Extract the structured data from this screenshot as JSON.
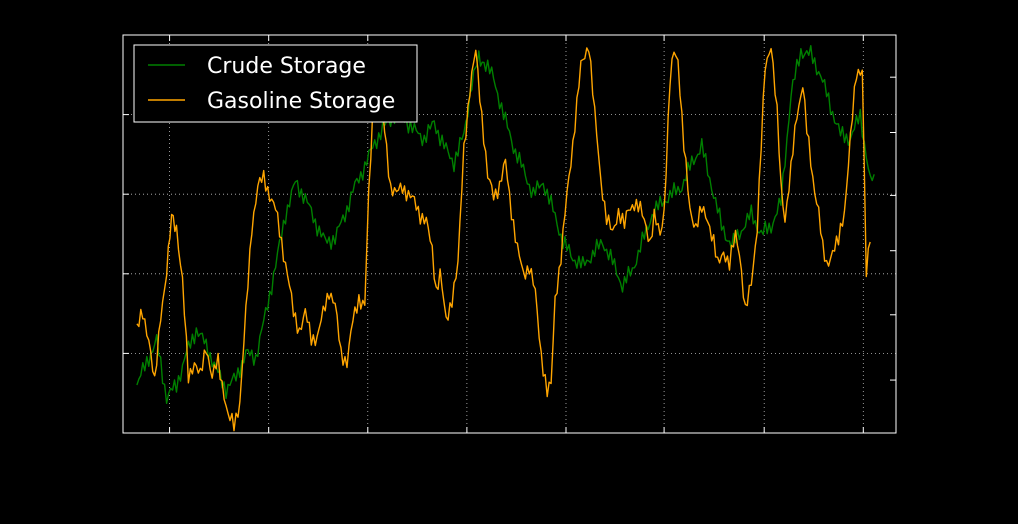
{
  "chart_data": {
    "type": "line",
    "grid": true,
    "legend_position": "top-left",
    "xlim": [
      0,
      780
    ],
    "ylim": [
      0,
      100
    ],
    "left_axis_ticks": [
      0,
      20,
      40,
      60,
      80,
      100
    ],
    "right_axis_ticks": [
      0,
      13.3,
      29.7,
      45.8,
      59.7,
      75.5,
      89.4
    ],
    "x_ticks": [
      47,
      147,
      247,
      347,
      447,
      546,
      647,
      747
    ],
    "series": [
      {
        "name": "Crude Storage",
        "color": "#008000",
        "points": [
          [
            14,
            12
          ],
          [
            24,
            18
          ],
          [
            34,
            23
          ],
          [
            44,
            9
          ],
          [
            54,
            12
          ],
          [
            64,
            20
          ],
          [
            74,
            26
          ],
          [
            84,
            22
          ],
          [
            94,
            16
          ],
          [
            104,
            11
          ],
          [
            114,
            14
          ],
          [
            124,
            20
          ],
          [
            134,
            19
          ],
          [
            144,
            30
          ],
          [
            154,
            42
          ],
          [
            164,
            55
          ],
          [
            174,
            63
          ],
          [
            184,
            59
          ],
          [
            194,
            53
          ],
          [
            204,
            48
          ],
          [
            214,
            49
          ],
          [
            224,
            55
          ],
          [
            234,
            62
          ],
          [
            244,
            67
          ],
          [
            254,
            73
          ],
          [
            264,
            77
          ],
          [
            274,
            80
          ],
          [
            284,
            79
          ],
          [
            294,
            76
          ],
          [
            304,
            74
          ],
          [
            314,
            78
          ],
          [
            324,
            72
          ],
          [
            334,
            68
          ],
          [
            344,
            75
          ],
          [
            352,
            88
          ],
          [
            359,
            94
          ],
          [
            366,
            93
          ],
          [
            374,
            89
          ],
          [
            384,
            80
          ],
          [
            394,
            72
          ],
          [
            404,
            66
          ],
          [
            414,
            60
          ],
          [
            424,
            63
          ],
          [
            434,
            56
          ],
          [
            444,
            48
          ],
          [
            454,
            44
          ],
          [
            464,
            42
          ],
          [
            474,
            45
          ],
          [
            484,
            48
          ],
          [
            494,
            43
          ],
          [
            504,
            37
          ],
          [
            514,
            41
          ],
          [
            524,
            48
          ],
          [
            534,
            55
          ],
          [
            544,
            58
          ],
          [
            554,
            60
          ],
          [
            564,
            62
          ],
          [
            574,
            68
          ],
          [
            584,
            72
          ],
          [
            594,
            62
          ],
          [
            604,
            52
          ],
          [
            614,
            47
          ],
          [
            624,
            51
          ],
          [
            634,
            55
          ],
          [
            644,
            50
          ],
          [
            654,
            52
          ],
          [
            664,
            58
          ],
          [
            674,
            85
          ],
          [
            684,
            96
          ],
          [
            694,
            95
          ],
          [
            704,
            90
          ],
          [
            714,
            82
          ],
          [
            724,
            75
          ],
          [
            734,
            74
          ],
          [
            744,
            80
          ],
          [
            754,
            63
          ],
          [
            758,
            65
          ]
        ]
      },
      {
        "name": "Gasoline Storage",
        "color": "#ffa500",
        "points": [
          [
            14,
            26
          ],
          [
            20,
            30
          ],
          [
            26,
            24
          ],
          [
            32,
            12
          ],
          [
            38,
            30
          ],
          [
            44,
            40
          ],
          [
            49,
            54
          ],
          [
            54,
            52
          ],
          [
            60,
            38
          ],
          [
            66,
            14
          ],
          [
            72,
            18
          ],
          [
            78,
            14
          ],
          [
            84,
            22
          ],
          [
            90,
            14
          ],
          [
            96,
            18
          ],
          [
            102,
            10
          ],
          [
            106,
            4
          ],
          [
            112,
            2
          ],
          [
            118,
            8
          ],
          [
            124,
            30
          ],
          [
            130,
            52
          ],
          [
            136,
            62
          ],
          [
            142,
            64
          ],
          [
            148,
            60
          ],
          [
            154,
            56
          ],
          [
            160,
            48
          ],
          [
            166,
            40
          ],
          [
            172,
            30
          ],
          [
            178,
            26
          ],
          [
            184,
            30
          ],
          [
            190,
            24
          ],
          [
            196,
            24
          ],
          [
            202,
            30
          ],
          [
            208,
            36
          ],
          [
            214,
            32
          ],
          [
            220,
            20
          ],
          [
            226,
            18
          ],
          [
            232,
            28
          ],
          [
            238,
            34
          ],
          [
            244,
            32
          ],
          [
            248,
            60
          ],
          [
            252,
            80
          ],
          [
            258,
            90
          ],
          [
            264,
            76
          ],
          [
            270,
            62
          ],
          [
            276,
            60
          ],
          [
            282,
            62
          ],
          [
            288,
            60
          ],
          [
            294,
            58
          ],
          [
            300,
            55
          ],
          [
            306,
            53
          ],
          [
            312,
            46
          ],
          [
            316,
            36
          ],
          [
            320,
            40
          ],
          [
            326,
            28
          ],
          [
            332,
            34
          ],
          [
            338,
            42
          ],
          [
            344,
            72
          ],
          [
            350,
            86
          ],
          [
            356,
            96
          ],
          [
            362,
            80
          ],
          [
            368,
            64
          ],
          [
            374,
            60
          ],
          [
            380,
            62
          ],
          [
            386,
            68
          ],
          [
            392,
            56
          ],
          [
            398,
            46
          ],
          [
            404,
            40
          ],
          [
            410,
            42
          ],
          [
            416,
            35
          ],
          [
            422,
            20
          ],
          [
            428,
            10
          ],
          [
            432,
            12
          ],
          [
            436,
            34
          ],
          [
            442,
            44
          ],
          [
            448,
            60
          ],
          [
            454,
            73
          ],
          [
            462,
            92
          ],
          [
            470,
            98
          ],
          [
            476,
            80
          ],
          [
            482,
            64
          ],
          [
            488,
            54
          ],
          [
            494,
            50
          ],
          [
            500,
            56
          ],
          [
            506,
            52
          ],
          [
            510,
            56
          ],
          [
            516,
            58
          ],
          [
            522,
            56
          ],
          [
            528,
            52
          ],
          [
            532,
            48
          ],
          [
            536,
            54
          ],
          [
            542,
            50
          ],
          [
            546,
            56
          ],
          [
            552,
            88
          ],
          [
            556,
            96
          ],
          [
            560,
            94
          ],
          [
            566,
            72
          ],
          [
            572,
            56
          ],
          [
            578,
            52
          ],
          [
            584,
            56
          ],
          [
            590,
            54
          ],
          [
            596,
            48
          ],
          [
            600,
            42
          ],
          [
            606,
            46
          ],
          [
            612,
            42
          ],
          [
            618,
            50
          ],
          [
            622,
            46
          ],
          [
            628,
            30
          ],
          [
            634,
            38
          ],
          [
            640,
            52
          ],
          [
            644,
            72
          ],
          [
            648,
            92
          ],
          [
            654,
            98
          ],
          [
            660,
            80
          ],
          [
            664,
            62
          ],
          [
            668,
            54
          ],
          [
            674,
            66
          ],
          [
            680,
            80
          ],
          [
            686,
            88
          ],
          [
            690,
            76
          ],
          [
            696,
            64
          ],
          [
            702,
            56
          ],
          [
            706,
            46
          ],
          [
            710,
            42
          ],
          [
            716,
            46
          ],
          [
            722,
            48
          ],
          [
            728,
            56
          ],
          [
            734,
            74
          ],
          [
            740,
            90
          ],
          [
            746,
            92
          ],
          [
            750,
            40
          ],
          [
            754,
            48
          ]
        ]
      }
    ]
  }
}
